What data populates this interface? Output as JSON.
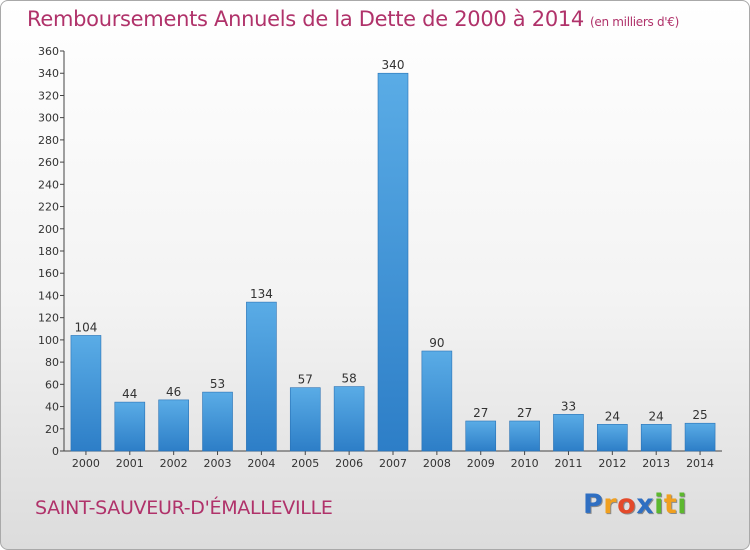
{
  "chart_data": {
    "type": "bar",
    "title": "Remboursements Annuels de la Dette de 2000 à 2014",
    "unit": "(en milliers d'€)",
    "categories": [
      "2000",
      "2001",
      "2002",
      "2003",
      "2004",
      "2005",
      "2006",
      "2007",
      "2008",
      "2009",
      "2010",
      "2011",
      "2012",
      "2013",
      "2014"
    ],
    "values": [
      104,
      44,
      46,
      53,
      134,
      57,
      58,
      340,
      90,
      27,
      27,
      33,
      24,
      24,
      25
    ],
    "value_labels": [
      "104",
      "44",
      "46",
      "53",
      "134",
      "57",
      "58",
      "340",
      "90",
      "27",
      "27",
      "33",
      "24",
      "24",
      "25"
    ],
    "ylim": [
      0,
      360
    ],
    "ytick_step": 20,
    "yticks": [
      "0",
      "20",
      "40",
      "60",
      "80",
      "100",
      "120",
      "140",
      "160",
      "180",
      "200",
      "220",
      "240",
      "260",
      "280",
      "300",
      "320",
      "340",
      "360"
    ],
    "xlabel": "",
    "ylabel": "",
    "grid": false,
    "bar_color": "#3d95dc"
  },
  "commune": "SAINT-SAUVEUR-D'ÉMALLEVILLE",
  "logo": {
    "letters": [
      "P",
      "r",
      "o",
      "x",
      "i",
      "t",
      "i"
    ],
    "colors": [
      "#2f6fc2",
      "#f0a020",
      "#e44a2a",
      "#2f6fc2",
      "#5cb82e",
      "#f0a020",
      "#5cb82e"
    ]
  }
}
